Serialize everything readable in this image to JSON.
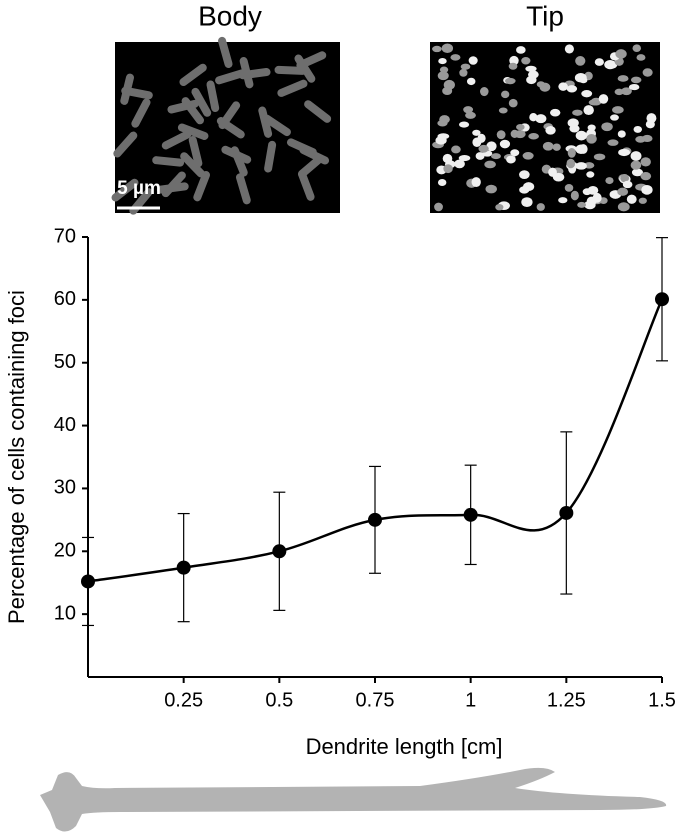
{
  "chart_data": {
    "type": "line",
    "panel_titles": [
      "Body",
      "Tip"
    ],
    "scale_bar_label": "5 µm",
    "xlabel": "Dendrite length [cm]",
    "ylabel": "Percentage of  cells containing foci",
    "x": [
      0,
      0.25,
      0.5,
      0.75,
      1,
      1.25,
      1.5
    ],
    "series": [
      {
        "color": "#000000",
        "values": [
          15.2,
          17.4,
          20,
          25,
          25.8,
          26.1,
          60.1
        ],
        "errors": [
          7,
          8.6,
          9.4,
          8.5,
          7.9,
          12.9,
          9.8
        ]
      }
    ],
    "xlim": [
      0,
      1.5
    ],
    "xticks": [
      0.25,
      0.5,
      0.75,
      1,
      1.25,
      1.5
    ],
    "ylim": [
      0,
      70
    ],
    "yticks": [
      10,
      20,
      30,
      40,
      50,
      60,
      70
    ]
  }
}
